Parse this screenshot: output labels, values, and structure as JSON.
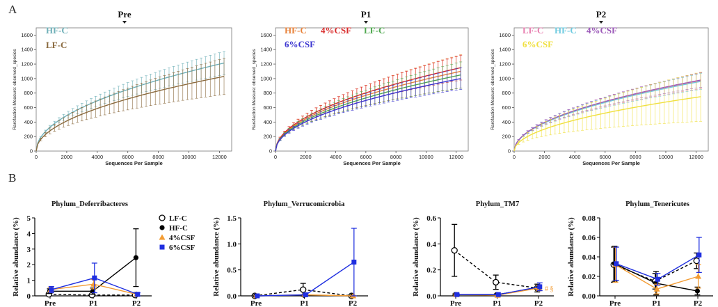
{
  "panel_letters": [
    "A",
    "B"
  ],
  "chart_data": [
    {
      "type": "line",
      "title": "Pre",
      "xlabel": "Sequences Per Sample",
      "ylabel": "Rarefaction Measure: observed_species",
      "xlim": [
        0,
        12800
      ],
      "ylim": [
        0,
        1700
      ],
      "xticks": [
        0,
        2000,
        4000,
        6000,
        8000,
        10000,
        12000
      ],
      "yticks": [
        0,
        200,
        400,
        600,
        800,
        1000,
        1200,
        1400,
        1600
      ],
      "legend": [
        "HF-C",
        "LF-C"
      ],
      "series": [
        {
          "name": "HF-C",
          "color": "#6fb0b8",
          "final": 1215,
          "err_final": 160
        },
        {
          "name": "LF-C",
          "color": "#8a6a3e",
          "final": 1030,
          "err_final": 250
        }
      ]
    },
    {
      "type": "line",
      "title": "P1",
      "xlabel": "Sequences Per Sample",
      "ylabel": "Rarefaction Measure: observed_species",
      "xlim": [
        0,
        12800
      ],
      "ylim": [
        0,
        1700
      ],
      "xticks": [
        0,
        2000,
        4000,
        6000,
        8000,
        10000,
        12000
      ],
      "yticks": [
        0,
        200,
        400,
        600,
        800,
        1000,
        1200,
        1400,
        1600
      ],
      "legend": [
        "HF-C",
        "4%CSF",
        "LF-C",
        "6%CSF"
      ],
      "series": [
        {
          "name": "HF-C",
          "color": "#e8823a",
          "final": 1100,
          "err_final": 230
        },
        {
          "name": "4%CSF",
          "color": "#d92b2b",
          "final": 1150,
          "err_final": 170
        },
        {
          "name": "LF-C",
          "color": "#4fa84f",
          "final": 1050,
          "err_final": 180
        },
        {
          "name": "6%CSF",
          "color": "#3b35d0",
          "final": 1000,
          "err_final": 150
        }
      ]
    },
    {
      "type": "line",
      "title": "P2",
      "xlabel": "Sequences Per Sample",
      "ylabel": "Rarefaction Measure: observed_species",
      "xlim": [
        0,
        12800
      ],
      "ylim": [
        0,
        1700
      ],
      "xticks": [
        0,
        2000,
        4000,
        6000,
        8000,
        10000,
        12000
      ],
      "yticks": [
        0,
        200,
        400,
        600,
        800,
        1000,
        1200,
        1400,
        1600
      ],
      "legend": [
        "LF-C",
        "HF-C",
        "4%CSF",
        "6%CSF"
      ],
      "series": [
        {
          "name": "LF-C",
          "color": "#e87fb0",
          "final": 970,
          "err_final": 110
        },
        {
          "name": "HF-C",
          "color": "#6fcbe0",
          "final": 960,
          "err_final": 110
        },
        {
          "name": "4%CSF",
          "color": "#9b58b8",
          "final": 980,
          "err_final": 100
        },
        {
          "name": "6%CSF",
          "color": "#f0e040",
          "final": 750,
          "err_final": 340
        }
      ]
    },
    {
      "type": "line",
      "title": "Phylum_Deferribacteres",
      "ylabel": "Relative abundance (%)",
      "categories": [
        "Pre",
        "P1",
        "P2"
      ],
      "ylim": [
        0,
        5
      ],
      "yticks": [
        0,
        1,
        2,
        3,
        4,
        5
      ],
      "series": [
        {
          "name": "LF-C",
          "values": [
            0.1,
            0.05,
            0.05
          ],
          "err": [
            0.05,
            0.05,
            0.05
          ]
        },
        {
          "name": "HF-C",
          "values": [
            0.3,
            0.3,
            2.45
          ],
          "err": [
            0.15,
            0.2,
            1.85
          ]
        },
        {
          "name": "4%CSF",
          "values": [
            0.4,
            0.75,
            0.1
          ],
          "err": [
            0.15,
            0.3,
            0.1
          ]
        },
        {
          "name": "6%CSF",
          "values": [
            0.4,
            1.15,
            0.1
          ],
          "err": [
            0.2,
            0.95,
            0.1
          ]
        }
      ]
    },
    {
      "type": "line",
      "title": "Phylum_Verrucomicrobia",
      "ylabel": "Relative abundance (%)",
      "categories": [
        "Pre",
        "P1",
        "P2"
      ],
      "ylim": [
        0,
        1.5
      ],
      "yticks": [
        0.0,
        0.5,
        1.0,
        1.5
      ],
      "series": [
        {
          "name": "LF-C",
          "values": [
            0.0,
            0.12,
            0.0
          ],
          "err": [
            0.01,
            0.12,
            0.01
          ]
        },
        {
          "name": "HF-C",
          "values": [
            0.0,
            0.01,
            0.0
          ],
          "err": [
            0.01,
            0.01,
            0.01
          ]
        },
        {
          "name": "4%CSF",
          "values": [
            0.0,
            0.02,
            0.0
          ],
          "err": [
            0.01,
            0.01,
            0.01
          ]
        },
        {
          "name": "6%CSF",
          "values": [
            0.0,
            0.02,
            0.65
          ],
          "err": [
            0.01,
            0.02,
            0.65
          ]
        }
      ]
    },
    {
      "type": "line",
      "title": "Phylum_TM7",
      "ylabel": "Relative abundance (%)",
      "categories": [
        "Pre",
        "P1",
        "P2"
      ],
      "ylim": [
        0,
        0.6
      ],
      "yticks": [
        0.0,
        0.2,
        0.4,
        0.6
      ],
      "annotations": [
        "# §"
      ],
      "series": [
        {
          "name": "LF-C",
          "values": [
            0.35,
            0.105,
            0.06
          ],
          "err": [
            0.2,
            0.055,
            0.03
          ]
        },
        {
          "name": "HF-C",
          "values": [
            0.01,
            0.01,
            0.06
          ],
          "err": [
            0.005,
            0.005,
            0.02
          ]
        },
        {
          "name": "4%CSF",
          "values": [
            0.01,
            0.005,
            0.06
          ],
          "err": [
            0.005,
            0.005,
            0.02
          ]
        },
        {
          "name": "6%CSF",
          "values": [
            0.01,
            0.01,
            0.07
          ],
          "err": [
            0.005,
            0.005,
            0.03
          ]
        }
      ]
    },
    {
      "type": "line",
      "title": "Phylum_Tenericutes",
      "ylabel": "Relative abundance (%)",
      "categories": [
        "Pre",
        "P1",
        "P2"
      ],
      "ylim": [
        0,
        0.08
      ],
      "yticks": [
        0.0,
        0.02,
        0.04,
        0.06,
        0.08
      ],
      "series": [
        {
          "name": "LF-C",
          "values": [
            0.032,
            0.015,
            0.036
          ],
          "err": [
            0.018,
            0.008,
            0.008
          ]
        },
        {
          "name": "HF-C",
          "values": [
            0.033,
            0.013,
            0.005
          ],
          "err": [
            0.018,
            0.012,
            0.004
          ]
        },
        {
          "name": "4%CSF",
          "values": [
            0.032,
            0.007,
            0.02
          ],
          "err": [
            0.018,
            0.005,
            0.012
          ]
        },
        {
          "name": "6%CSF",
          "values": [
            0.033,
            0.017,
            0.042
          ],
          "err": [
            0.017,
            0.006,
            0.018
          ]
        }
      ]
    }
  ],
  "line_legend": {
    "items": [
      {
        "label": "LF-C",
        "marker": "open-circle",
        "dashed": true,
        "color": "#000000"
      },
      {
        "label": "HF-C",
        "marker": "filled-circle",
        "dashed": false,
        "color": "#000000"
      },
      {
        "label": "4%CSF",
        "marker": "triangle",
        "dashed": false,
        "color": "#f39c33"
      },
      {
        "label": "6%CSF",
        "marker": "square",
        "dashed": false,
        "color": "#1f2fe0"
      }
    ]
  }
}
